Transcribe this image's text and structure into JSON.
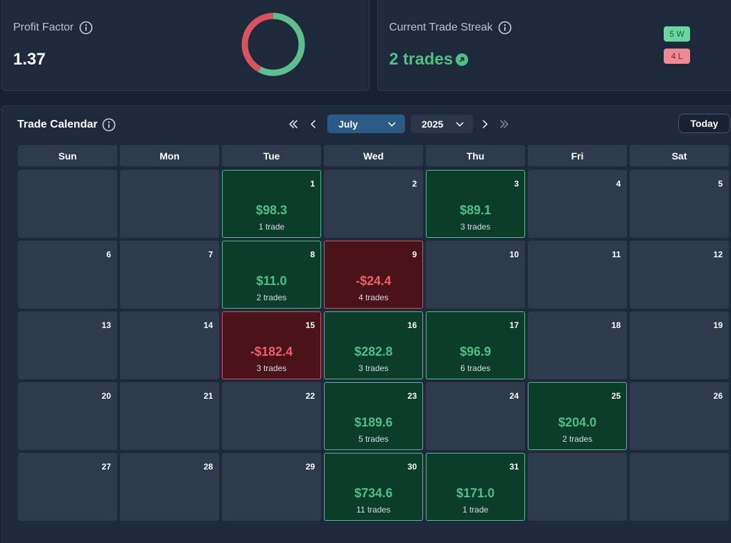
{
  "profit_factor": {
    "title": "Profit Factor",
    "value": "1.37",
    "info_icon": "info-icon",
    "donut_win_fraction": 0.578,
    "colors": {
      "win": "#5cbf8f",
      "loss": "#d9535f"
    }
  },
  "streak": {
    "title": "Current Trade Streak",
    "value": "2 trades",
    "arrow_icon": "arrow-up-right-icon",
    "wins_badge": "5 W",
    "losses_badge": "4 L"
  },
  "calendar": {
    "title": "Trade Calendar",
    "month": "July",
    "year": "2025",
    "today_label": "Today",
    "weekdays": [
      "Sun",
      "Mon",
      "Tue",
      "Wed",
      "Thu",
      "Fri",
      "Sat"
    ],
    "first_weekday_index": 2,
    "days_in_month": 31,
    "trades": {
      "1": {
        "pnl": "$98.3",
        "trades": "1 trade",
        "result": "win"
      },
      "3": {
        "pnl": "$89.1",
        "trades": "3 trades",
        "result": "win"
      },
      "8": {
        "pnl": "$11.0",
        "trades": "2 trades",
        "result": "win"
      },
      "9": {
        "pnl": "-$24.4",
        "trades": "4 trades",
        "result": "loss"
      },
      "15": {
        "pnl": "-$182.4",
        "trades": "3 trades",
        "result": "loss"
      },
      "16": {
        "pnl": "$282.8",
        "trades": "3 trades",
        "result": "win"
      },
      "17": {
        "pnl": "$96.9",
        "trades": "6 trades",
        "result": "win"
      },
      "23": {
        "pnl": "$189.6",
        "trades": "5 trades",
        "result": "win"
      },
      "25": {
        "pnl": "$204.0",
        "trades": "2 trades",
        "result": "win"
      },
      "30": {
        "pnl": "$734.6",
        "trades": "11 trades",
        "result": "win"
      },
      "31": {
        "pnl": "$171.0",
        "trades": "1 trade",
        "result": "win"
      }
    }
  }
}
